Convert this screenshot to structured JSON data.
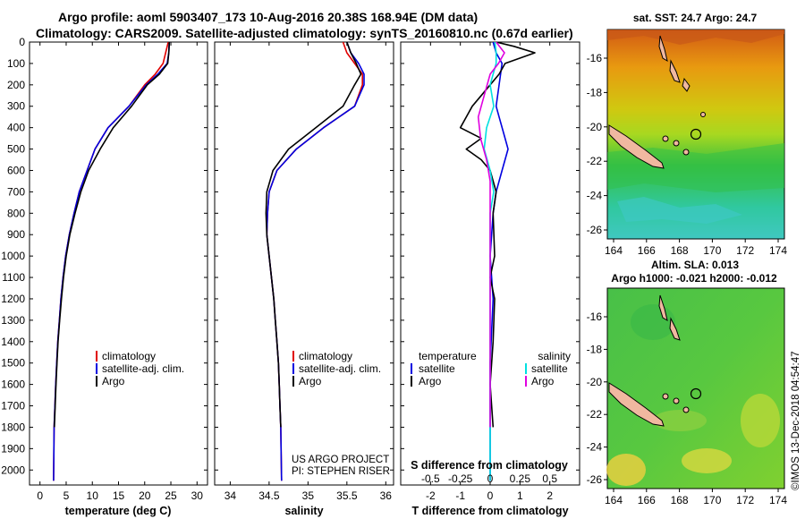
{
  "header": {
    "title_line1": "Argo profile: aoml 5903407_173 10-Aug-2016 20.38S 168.94E (DM data)",
    "title_line2": "Climatology: CARS2009. Satellite-adjusted climatology: synTS_20160810.nc (0.67d earlier)"
  },
  "colors": {
    "climatology": "#e00000",
    "satellite": "#0000e0",
    "argo": "#000000",
    "satellite_sal": "#00e0e0",
    "argo_sal": "#e000e0"
  },
  "chart_data": [
    {
      "type": "line",
      "xlabel": "temperature (deg C)",
      "ylim": [
        2070,
        0
      ],
      "xlim": [
        -2,
        32
      ],
      "xticks": [
        0,
        5,
        10,
        15,
        20,
        25,
        30
      ],
      "yticks": [
        0,
        100,
        200,
        300,
        400,
        500,
        600,
        700,
        800,
        900,
        1000,
        1100,
        1200,
        1300,
        1400,
        1500,
        1600,
        1700,
        1800,
        1900,
        2000
      ],
      "legend": [
        "climatology",
        "satellite-adj. clim.",
        "Argo"
      ],
      "series": [
        {
          "name": "climatology",
          "color_key": "climatology",
          "x": [
            24.5,
            24.0,
            23.5,
            22.0,
            20.0,
            17.0,
            13.0,
            10.5,
            9.0,
            7.5,
            6.5,
            5.6,
            4.9,
            4.4,
            4.0,
            3.7,
            3.4,
            3.2,
            3.0,
            2.85,
            2.7,
            2.6
          ],
          "y": [
            0,
            50,
            100,
            150,
            200,
            300,
            400,
            500,
            600,
            700,
            800,
            900,
            1000,
            1100,
            1200,
            1300,
            1400,
            1500,
            1600,
            1700,
            1800,
            2050
          ]
        },
        {
          "name": "satellite-adj. clim.",
          "color_key": "satellite",
          "x": [
            24.7,
            24.6,
            24.3,
            22.5,
            20.3,
            17.0,
            13.0,
            10.5,
            9.0,
            7.5,
            6.5,
            5.6,
            4.9,
            4.4,
            4.0,
            3.7,
            3.4,
            3.2,
            3.0,
            2.85,
            2.7,
            2.6
          ],
          "y": [
            0,
            50,
            100,
            150,
            200,
            300,
            400,
            500,
            600,
            700,
            800,
            900,
            1000,
            1100,
            1200,
            1300,
            1400,
            1500,
            1600,
            1700,
            1800,
            2050
          ]
        },
        {
          "name": "Argo",
          "color_key": "argo",
          "x": [
            24.7,
            24.6,
            24.4,
            22.8,
            20.5,
            17.5,
            14.0,
            11.5,
            9.3,
            7.8,
            6.7,
            5.7,
            5.0,
            4.5,
            4.1,
            3.75,
            3.45,
            3.25,
            3.05,
            2.9,
            2.75
          ],
          "y": [
            0,
            50,
            100,
            150,
            200,
            300,
            400,
            500,
            600,
            700,
            800,
            900,
            1000,
            1100,
            1200,
            1300,
            1400,
            1500,
            1600,
            1700,
            1800
          ]
        }
      ]
    },
    {
      "type": "line",
      "xlabel": "salinity",
      "ylim": [
        2070,
        0
      ],
      "xlim": [
        33.8,
        36.1
      ],
      "xticks": [
        34,
        34.5,
        35,
        35.5,
        36
      ],
      "xticklabels": [
        "34",
        "34.5",
        "35",
        "35.5",
        "36"
      ],
      "legend": [
        "climatology",
        "satellite-adj. clim.",
        "Argo"
      ],
      "annotation_lines": [
        "US ARGO PROJECT",
        "PI: STEPHEN RISER"
      ],
      "series": [
        {
          "name": "climatology",
          "color_key": "climatology",
          "x": [
            35.45,
            35.5,
            35.6,
            35.7,
            35.7,
            35.6,
            35.2,
            34.85,
            34.6,
            34.5,
            34.48,
            34.47,
            34.5,
            34.53,
            34.56,
            34.58,
            34.6,
            34.62,
            34.63,
            34.64,
            34.65,
            34.66
          ],
          "y": [
            0,
            50,
            100,
            150,
            200,
            300,
            400,
            500,
            600,
            700,
            800,
            900,
            1000,
            1100,
            1200,
            1300,
            1400,
            1500,
            1600,
            1700,
            1800,
            2050
          ]
        },
        {
          "name": "satellite-adj. clim.",
          "color_key": "satellite",
          "x": [
            35.5,
            35.55,
            35.65,
            35.72,
            35.72,
            35.6,
            35.2,
            34.85,
            34.6,
            34.5,
            34.48,
            34.47,
            34.5,
            34.53,
            34.56,
            34.58,
            34.6,
            34.62,
            34.63,
            34.64,
            34.65,
            34.66
          ],
          "y": [
            0,
            50,
            100,
            150,
            200,
            300,
            400,
            500,
            600,
            700,
            800,
            900,
            1000,
            1100,
            1200,
            1300,
            1400,
            1500,
            1600,
            1700,
            1800,
            2050
          ]
        },
        {
          "name": "Argo",
          "color_key": "argo",
          "x": [
            35.5,
            35.55,
            35.62,
            35.68,
            35.6,
            35.45,
            35.1,
            34.75,
            34.55,
            34.47,
            34.46,
            34.47,
            34.5,
            34.53,
            34.56,
            34.58,
            34.6,
            34.62,
            34.63,
            34.64,
            34.65
          ],
          "y": [
            0,
            50,
            100,
            150,
            200,
            300,
            400,
            500,
            600,
            700,
            800,
            900,
            1000,
            1100,
            1200,
            1300,
            1400,
            1500,
            1600,
            1700,
            1800
          ]
        }
      ]
    },
    {
      "type": "line",
      "xlabel": "T difference from climatology",
      "xlabel_top": "S difference from climatology",
      "ylim": [
        2070,
        0
      ],
      "xlim": [
        -3,
        3
      ],
      "xticks": [
        -2,
        -1,
        0,
        1,
        2
      ],
      "sticks": [
        -0.5,
        -0.25,
        0,
        0.25,
        0.5
      ],
      "sticklabels": [
        "-0.5",
        "-0.25",
        "0",
        "0.25",
        "0.5"
      ],
      "s_scale": 4,
      "legend_left_header": "temperature",
      "legend_right_header": "salinity",
      "legend_left": [
        "satellite",
        "Argo"
      ],
      "legend_right": [
        "satellite",
        "Argo"
      ],
      "series": [
        {
          "name": "T satellite",
          "color_key": "satellite",
          "x": [
            0.1,
            0.2,
            0.4,
            0.3,
            0.2,
            0.3,
            0.5,
            0.6,
            0.4,
            0.2,
            0.1,
            0.0,
            0.1,
            0.0,
            0.0,
            0.0
          ],
          "y": [
            0,
            50,
            100,
            200,
            300,
            350,
            450,
            500,
            600,
            700,
            800,
            1000,
            1200,
            1500,
            1800,
            2050
          ]
        },
        {
          "name": "T Argo",
          "color_key": "argo",
          "x": [
            0.2,
            0.8,
            1.5,
            0.5,
            0.3,
            -0.3,
            -0.6,
            -1.0,
            -0.3,
            -0.8,
            -0.3,
            0.0,
            0.2,
            0.1,
            0.15,
            0.0,
            0.15,
            0.1,
            0.0,
            0.1
          ],
          "y": [
            0,
            20,
            50,
            100,
            150,
            250,
            300,
            400,
            450,
            500,
            550,
            600,
            700,
            800,
            1000,
            1100,
            1200,
            1400,
            1600,
            1800
          ]
        },
        {
          "name": "S satellite",
          "color_key": "satellite_sal",
          "x": [
            0.04,
            0.05,
            0.05,
            0.0,
            0.03,
            -0.03,
            -0.05,
            0.0,
            0.03,
            0.0,
            0.0,
            0.0,
            0.0,
            0.0
          ],
          "y": [
            0,
            50,
            100,
            200,
            300,
            400,
            500,
            600,
            700,
            800,
            1000,
            1200,
            1600,
            2050
          ]
        },
        {
          "name": "S Argo",
          "color_key": "argo_sal",
          "x": [
            0.05,
            0.12,
            0.07,
            0.0,
            -0.05,
            -0.1,
            -0.08,
            -0.03,
            0.0,
            0.0,
            0.0,
            0.0,
            0.0,
            0.0
          ],
          "y": [
            0,
            50,
            100,
            150,
            250,
            350,
            450,
            550,
            650,
            750,
            900,
            1100,
            1500,
            1800
          ]
        }
      ]
    }
  ],
  "map_sst": {
    "title": "sat. SST: 24.7 Argo: 24.7",
    "xticks": [
      "164",
      "166",
      "168",
      "170",
      "172",
      "174"
    ],
    "yticks": [
      "-16",
      "-18",
      "-20",
      "-22",
      "-24",
      "-26"
    ]
  },
  "map_sla": {
    "title_line1": "Altim. SLA: 0.013",
    "title_line2": "Argo h1000: -0.021 h2000: -0.012",
    "xticks": [
      "164",
      "166",
      "168",
      "170",
      "172",
      "174"
    ],
    "yticks": [
      "-16",
      "-18",
      "-20",
      "-22",
      "-24",
      "-26"
    ]
  },
  "credit": "©IMOS 13-Dec-2018 04:54:47"
}
